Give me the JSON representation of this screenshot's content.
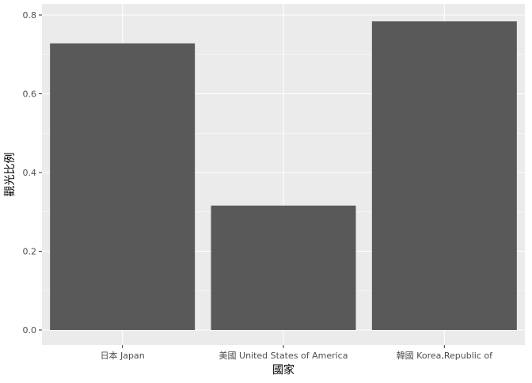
{
  "chart_data": {
    "type": "bar",
    "title": "",
    "xlabel": "國家",
    "ylabel": "觀光比例",
    "categories": [
      "日本 Japan",
      "美國 United States of America",
      "韓國 Korea,Republic of"
    ],
    "values": [
      0.728,
      0.316,
      0.784
    ],
    "ylim": [
      0,
      0.8
    ],
    "yticks": [
      0.0,
      0.2,
      0.4,
      0.6,
      0.8
    ],
    "ytick_labels": [
      "0.0",
      "0.2",
      "0.4",
      "0.6",
      "0.8"
    ],
    "grid": true,
    "legend": "none",
    "colors": {
      "panel_background": "#EBEBEB",
      "grid_major": "#FFFFFF",
      "bar_fill": "#595959",
      "axis_text": "#4D4D4D",
      "axis_title": "#000000"
    }
  }
}
